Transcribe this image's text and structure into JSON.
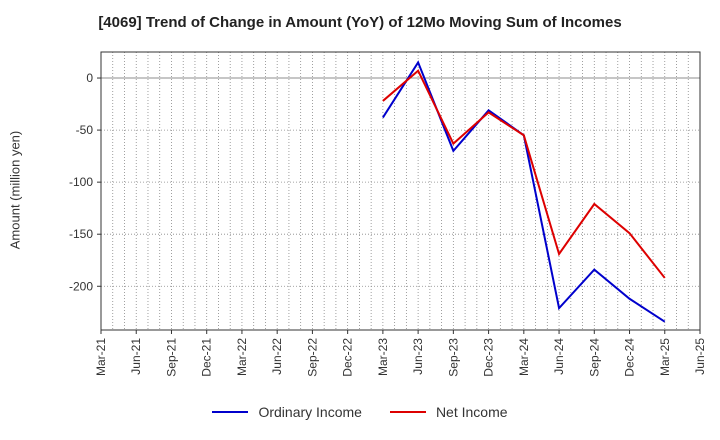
{
  "chart_data": {
    "type": "line",
    "title": "[4069]  Trend of Change in Amount (YoY) of 12Mo Moving Sum of Incomes",
    "xlabel": "",
    "ylabel": "Amount (million yen)",
    "categories": [
      "Mar-21",
      "Jun-21",
      "Sep-21",
      "Dec-21",
      "Mar-22",
      "Jun-22",
      "Sep-22",
      "Dec-22",
      "Mar-23",
      "Jun-23",
      "Sep-23",
      "Dec-23",
      "Mar-24",
      "Jun-24",
      "Sep-24",
      "Dec-24",
      "Mar-25",
      "Jun-25"
    ],
    "ylim": [
      -242,
      25
    ],
    "yticks": [
      0,
      -50,
      -100,
      -150,
      -200
    ],
    "grid": true,
    "legend_position": "bottom",
    "series": [
      {
        "name": "Ordinary Income",
        "color": "#0000cc",
        "values": [
          null,
          null,
          null,
          null,
          null,
          null,
          null,
          null,
          -38,
          15,
          -70,
          -31,
          -55,
          -221,
          -184,
          -212,
          -234,
          null
        ]
      },
      {
        "name": "Net Income",
        "color": "#dd0000",
        "values": [
          null,
          null,
          null,
          null,
          null,
          null,
          null,
          null,
          -22,
          7,
          -63,
          -33,
          -55,
          -169,
          -121,
          -149,
          -192,
          null
        ]
      }
    ]
  }
}
